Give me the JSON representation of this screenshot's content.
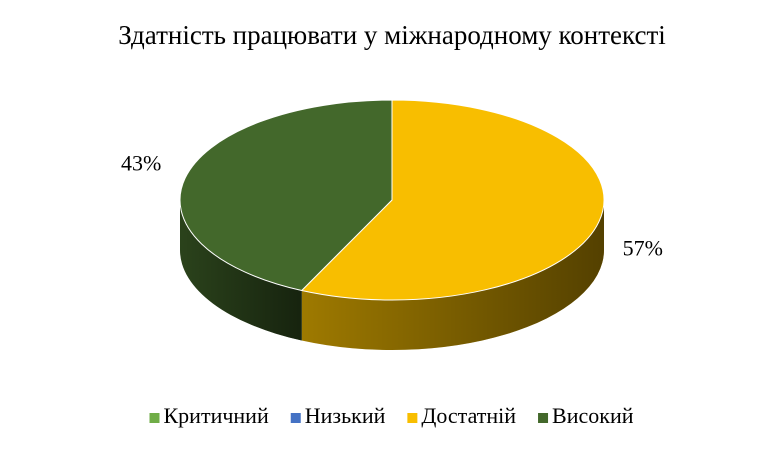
{
  "chart_data": {
    "type": "pie3d",
    "title": "Здатність працювати у міжнародному контексті",
    "categories": [
      "Критичний",
      "Низький",
      "Достатній",
      "Високий"
    ],
    "values": [
      0,
      0,
      57,
      43
    ],
    "value_labels": [
      null,
      null,
      "57%",
      "43%"
    ],
    "colors": [
      "#70ad47",
      "#4472c4",
      "#f8be00",
      "#43682b"
    ],
    "legend": "bottom"
  }
}
